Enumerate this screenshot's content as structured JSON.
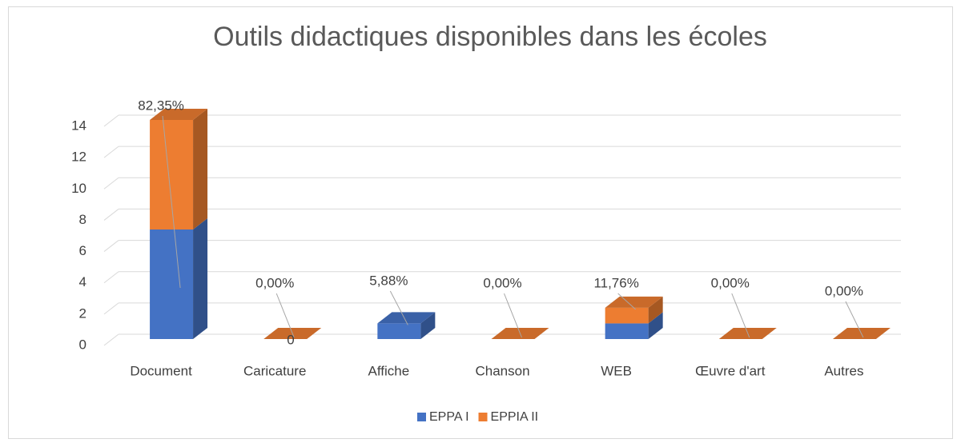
{
  "chart_data": {
    "type": "bar3d_stacked",
    "title": "Outils didactiques disponibles dans les écoles",
    "categories": [
      "Document",
      "Caricature",
      "Affiche",
      "Chanson",
      "WEB",
      "Œuvre d'art",
      "Autres"
    ],
    "series": [
      {
        "name": "EPPA I",
        "color": "#4472c4",
        "values": [
          7,
          0,
          1,
          0,
          1,
          0,
          0
        ]
      },
      {
        "name": "EPPIA II",
        "color": "#ed7d31",
        "values": [
          7,
          0,
          0,
          0,
          1,
          0,
          0
        ]
      }
    ],
    "percent_labels": [
      "82,35%",
      "0,00%",
      "5,88%",
      "0,00%",
      "11,76%",
      "0,00%",
      "0,00%"
    ],
    "extra_label": "0",
    "ylim": [
      0,
      14
    ],
    "yticks": [
      0,
      2,
      4,
      6,
      8,
      10,
      12,
      14
    ],
    "grid": true,
    "legend": "bottom"
  }
}
